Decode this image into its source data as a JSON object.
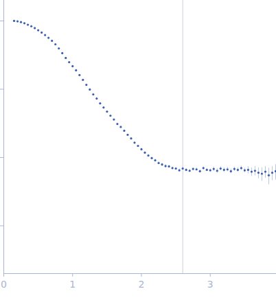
{
  "chart_data": {
    "type": "scatter",
    "log": "y",
    "color": "#3b5fb0",
    "marker": "circle",
    "tick_labels": "x",
    "xlim": [
      0,
      3.96
    ],
    "xticks": [
      0,
      1,
      2,
      3
    ],
    "ylim": [
      0.0002,
      2
    ],
    "yticks": [
      0.001,
      0.01,
      0.1,
      1
    ],
    "vline": 2.6,
    "x": [
      0.15,
      0.2,
      0.25,
      0.3,
      0.35,
      0.4,
      0.45,
      0.5,
      0.55,
      0.6,
      0.65,
      0.7,
      0.75,
      0.8,
      0.85,
      0.9,
      0.95,
      1.0,
      1.05,
      1.1,
      1.15,
      1.2,
      1.25,
      1.3,
      1.35,
      1.4,
      1.45,
      1.5,
      1.55,
      1.6,
      1.65,
      1.7,
      1.75,
      1.8,
      1.85,
      1.9,
      1.95,
      2.0,
      2.05,
      2.1,
      2.15,
      2.2,
      2.25,
      2.3,
      2.35,
      2.4,
      2.45,
      2.5,
      2.55,
      2.6,
      2.65,
      2.7,
      2.75,
      2.8,
      2.85,
      2.9,
      2.95,
      3.0,
      3.05,
      3.1,
      3.15,
      3.2,
      3.25,
      3.3,
      3.35,
      3.4,
      3.45,
      3.5,
      3.55,
      3.6,
      3.65,
      3.7,
      3.75,
      3.8,
      3.85,
      3.9,
      3.95
    ],
    "values": [
      1.0,
      0.985,
      0.96,
      0.925,
      0.88,
      0.835,
      0.785,
      0.73,
      0.675,
      0.62,
      0.565,
      0.511,
      0.455,
      0.396,
      0.337,
      0.287,
      0.249,
      0.217,
      0.189,
      0.161,
      0.137,
      0.116,
      0.099,
      0.084,
      0.073,
      0.062,
      0.054,
      0.047,
      0.041,
      0.036,
      0.031,
      0.028,
      0.0247,
      0.0215,
      0.019,
      0.0165,
      0.0148,
      0.0132,
      0.0118,
      0.0107,
      0.0098,
      0.0091,
      0.0083,
      0.0079,
      0.0075,
      0.0074,
      0.007,
      0.0069,
      0.0065,
      0.0069,
      0.0066,
      0.0064,
      0.0068,
      0.0067,
      0.0063,
      0.007,
      0.0066,
      0.0065,
      0.0068,
      0.0064,
      0.0069,
      0.0066,
      0.0067,
      0.0063,
      0.0068,
      0.0066,
      0.007,
      0.0065,
      0.0066,
      0.0062,
      0.0064,
      0.006,
      0.0058,
      0.0062,
      0.0055,
      0.006,
      0.0063
    ],
    "errors": [
      0.003,
      0.003,
      0.003,
      0.003,
      0.003,
      0.003,
      0.003,
      0.003,
      0.003,
      0.003,
      0.003,
      0.003,
      0.003,
      0.003,
      0.003,
      0.003,
      0.003,
      0.003,
      0.003,
      0.003,
      0.003,
      0.003,
      0.003,
      0.003,
      0.003,
      0.0004,
      0.0004,
      0.0004,
      0.0004,
      0.0004,
      0.0004,
      0.0004,
      0.0004,
      0.0004,
      0.0004,
      0.0004,
      0.0004,
      0.0004,
      0.0004,
      0.0004,
      0.0004,
      0.0004,
      0.0004,
      0.0004,
      0.0004,
      0.0003,
      0.0003,
      0.0003,
      0.0003,
      0.0003,
      0.0003,
      0.0003,
      0.0003,
      0.0003,
      0.0003,
      0.0003,
      0.0003,
      0.0003,
      0.0005,
      0.0005,
      0.0005,
      0.0005,
      0.0005,
      0.0005,
      0.0005,
      0.0005,
      0.0005,
      0.0005,
      0.0008,
      0.0009,
      0.001,
      0.0011,
      0.0013,
      0.0012,
      0.0015,
      0.0014,
      0.0016
    ]
  }
}
